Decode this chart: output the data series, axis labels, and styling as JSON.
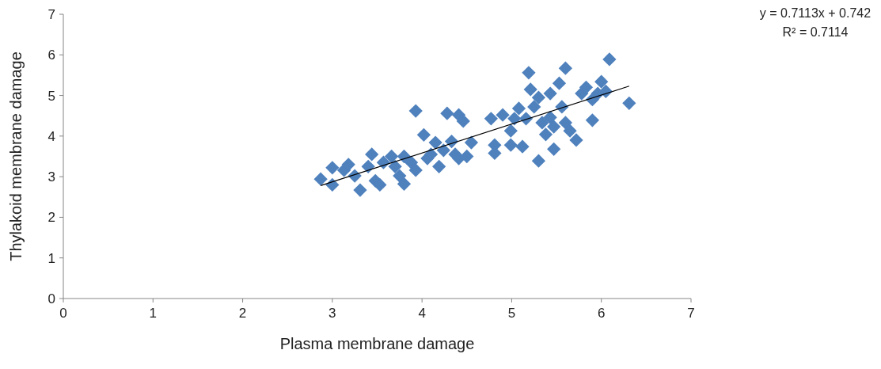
{
  "chart_data": {
    "type": "scatter",
    "xlabel": "Plasma membrane damage",
    "ylabel": "Thylakoid membrane damage",
    "xlim": [
      0,
      7
    ],
    "ylim": [
      0,
      7
    ],
    "xticks": [
      0,
      1,
      2,
      3,
      4,
      5,
      6,
      7
    ],
    "yticks": [
      0,
      1,
      2,
      3,
      4,
      5,
      6,
      7
    ],
    "grid": false,
    "marker": "diamond",
    "annotations": [
      "y = 0.7113x + 0.742",
      "R² = 0.7114"
    ],
    "series": [
      {
        "type": "scatter",
        "color": "#4f81bd",
        "x": [
          2.87,
          3.0,
          3.0,
          3.13,
          3.18,
          3.25,
          3.31,
          3.4,
          3.44,
          3.48,
          3.53,
          3.57,
          3.66,
          3.7,
          3.75,
          3.8,
          3.8,
          3.88,
          3.93,
          3.93,
          4.02,
          4.06,
          4.15,
          4.19,
          4.24,
          4.28,
          4.33,
          4.37,
          4.41,
          4.46,
          4.41,
          4.55,
          4.1,
          4.5,
          4.77,
          4.81,
          4.81,
          4.9,
          4.99,
          4.99,
          5.03,
          5.08,
          5.12,
          5.16,
          5.19,
          5.21,
          5.25,
          5.3,
          5.3,
          5.34,
          5.38,
          5.43,
          5.43,
          5.47,
          5.47,
          5.53,
          5.56,
          5.6,
          5.6,
          5.65,
          5.72,
          5.78,
          5.83,
          5.9,
          5.9,
          5.96,
          6.0,
          6.05,
          6.09,
          6.31
        ],
        "values": [
          2.94,
          3.22,
          2.8,
          3.16,
          3.3,
          3.02,
          2.67,
          3.25,
          3.55,
          2.9,
          2.8,
          3.35,
          3.5,
          3.25,
          3.02,
          3.5,
          2.82,
          3.35,
          3.16,
          4.62,
          4.03,
          3.45,
          3.84,
          3.25,
          3.65,
          4.56,
          3.87,
          3.55,
          4.52,
          4.37,
          3.45,
          3.84,
          3.55,
          3.5,
          4.43,
          3.78,
          3.58,
          4.52,
          4.13,
          3.78,
          4.43,
          4.68,
          3.74,
          4.43,
          5.56,
          5.15,
          4.72,
          3.39,
          4.95,
          4.33,
          4.04,
          5.05,
          4.46,
          4.23,
          3.68,
          5.3,
          4.72,
          5.67,
          4.33,
          4.13,
          3.9,
          5.05,
          5.2,
          4.9,
          4.39,
          5.05,
          5.34,
          5.1,
          5.89,
          4.81
        ]
      },
      {
        "type": "line",
        "color": "#000000",
        "marker": "none",
        "x": [
          2.87,
          6.31
        ],
        "values": [
          2.78,
          5.23
        ]
      }
    ]
  }
}
